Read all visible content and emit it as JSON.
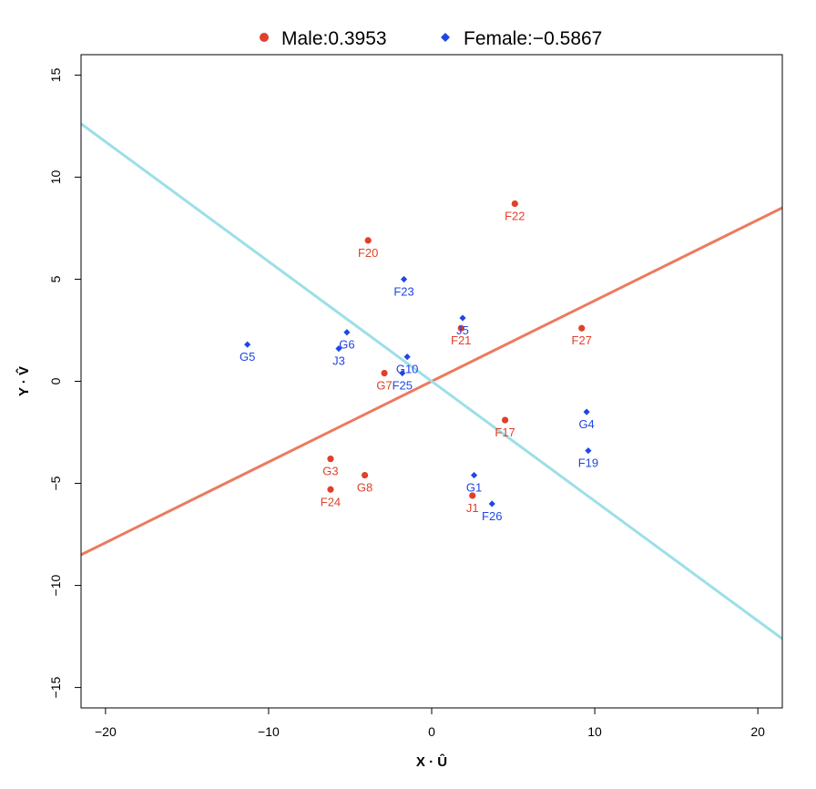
{
  "chart_data": {
    "type": "scatter",
    "xlabel": "X · Û",
    "ylabel": "Y · V̂",
    "xlim": [
      -21.5,
      21.5
    ],
    "ylim": [
      -16,
      16
    ],
    "x_ticks": [
      -20,
      -10,
      0,
      10,
      20
    ],
    "y_ticks": [
      -15,
      -10,
      -5,
      0,
      5,
      10,
      15
    ],
    "grid": false,
    "legend_position": "top",
    "series": [
      {
        "name": "Male:0.3953",
        "marker": "circle",
        "color": "#e0402a",
        "line_color": "#ec7a5e",
        "slope": 0.3953,
        "points": [
          {
            "label": "F22",
            "x": 5.1,
            "y": 8.7
          },
          {
            "label": "F20",
            "x": -3.9,
            "y": 6.9
          },
          {
            "label": "F21",
            "x": 1.8,
            "y": 2.6
          },
          {
            "label": "F27",
            "x": 9.2,
            "y": 2.6
          },
          {
            "label": "G7",
            "x": -2.9,
            "y": 0.4
          },
          {
            "label": "F17",
            "x": 4.5,
            "y": -1.9
          },
          {
            "label": "G3",
            "x": -6.2,
            "y": -3.8
          },
          {
            "label": "G8",
            "x": -4.1,
            "y": -4.6
          },
          {
            "label": "F24",
            "x": -6.2,
            "y": -5.3
          },
          {
            "label": "J1",
            "x": 2.5,
            "y": -5.6
          }
        ]
      },
      {
        "name": "Female:−0.5867",
        "marker": "diamond",
        "color": "#1f46e6",
        "line_color": "#9cdfe8",
        "slope": -0.5867,
        "points": [
          {
            "label": "F23",
            "x": -1.7,
            "y": 5.0
          },
          {
            "label": "J5",
            "x": 1.9,
            "y": 3.1
          },
          {
            "label": "G5",
            "x": -11.3,
            "y": 1.8
          },
          {
            "label": "G6",
            "x": -5.2,
            "y": 2.4
          },
          {
            "label": "J3",
            "x": -5.7,
            "y": 1.6
          },
          {
            "label": "G10",
            "x": -1.5,
            "y": 1.2
          },
          {
            "label": "F25",
            "x": -1.8,
            "y": 0.4
          },
          {
            "label": "G4",
            "x": 9.5,
            "y": -1.5
          },
          {
            "label": "F19",
            "x": 9.6,
            "y": -3.4
          },
          {
            "label": "G1",
            "x": 2.6,
            "y": -4.6
          },
          {
            "label": "F26",
            "x": 3.7,
            "y": -6.0
          }
        ]
      }
    ]
  }
}
